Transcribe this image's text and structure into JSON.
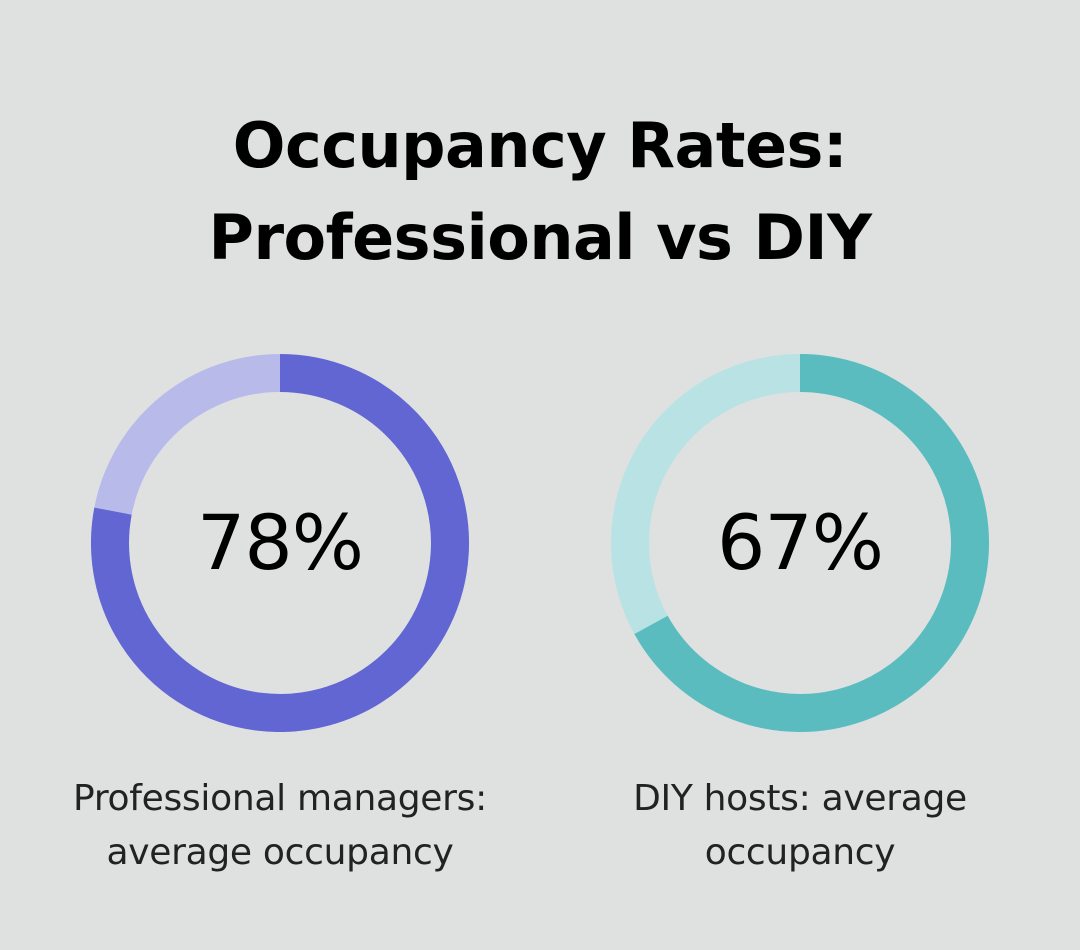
{
  "title_lines": [
    "Occupancy Rates:",
    "Professional vs DIY"
  ],
  "chart_data": {
    "type": "pie",
    "variant": "donut",
    "title": "Occupancy Rates: Professional vs DIY",
    "items": [
      {
        "value": 78,
        "display": "78%",
        "caption_lines": [
          "Professional managers:",
          "average occupancy"
        ],
        "color": "#6166d2",
        "track_color": "#b8bbea"
      },
      {
        "value": 67,
        "display": "67%",
        "caption_lines": [
          "DIY hosts: average",
          "occupancy"
        ],
        "color": "#5bbcc0",
        "track_color": "#b8e2e4"
      }
    ]
  }
}
